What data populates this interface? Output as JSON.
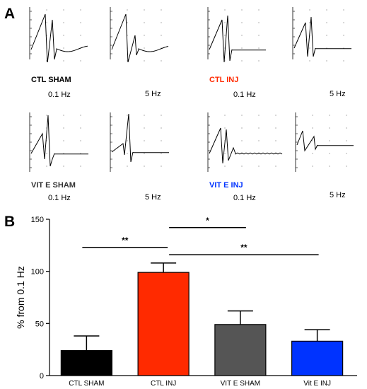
{
  "panel_a": {
    "letter": "A",
    "groups": [
      {
        "name": "CTL SHAM",
        "color": "#000000",
        "freq_left": "0.1 Hz",
        "freq_right": "5 Hz"
      },
      {
        "name": "CTL INJ",
        "color": "#ff2a00",
        "freq_left": "0.1 Hz",
        "freq_right": "5 Hz"
      },
      {
        "name": "VIT E SHAM",
        "color": "#333333",
        "freq_left": "0.1 Hz",
        "freq_right": "5 Hz"
      },
      {
        "name": "VIT E INJ",
        "color": "#0033ff",
        "freq_left": "0.1 Hz",
        "freq_right": "5 Hz"
      }
    ]
  },
  "panel_b": {
    "letter": "B"
  },
  "chart_data": {
    "type": "bar",
    "categories": [
      "CTL SHAM",
      "CTL INJ",
      "VIT E SHAM",
      "Vit E INJ"
    ],
    "values": [
      24,
      99,
      49,
      33
    ],
    "errors": [
      14,
      9,
      13,
      11
    ],
    "colors": [
      "#000000",
      "#ff2a00",
      "#555555",
      "#0033ff"
    ],
    "ylabel": "% from 0.1 Hz",
    "ylim": [
      0,
      150
    ],
    "yticks": [
      0,
      50,
      100,
      150
    ],
    "annotations": [
      {
        "label": "**",
        "from": "CTL SHAM",
        "to": "CTL INJ"
      },
      {
        "label": "*",
        "from": "CTL INJ",
        "to": "VIT E SHAM"
      },
      {
        "label": "**",
        "from": "CTL INJ",
        "to": "Vit E INJ"
      }
    ]
  }
}
